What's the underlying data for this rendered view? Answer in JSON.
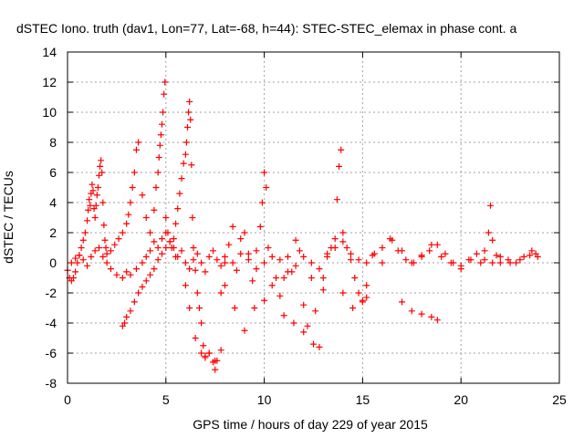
{
  "chart_data": {
    "type": "scatter",
    "title": "dSTEC Iono. truth (dav1, Lon=77, Lat=-68, h=44): STEC-STEC_elemax in phase cont. a",
    "xlabel": "GPS time / hours of day 229 of year 2015",
    "ylabel": "dSTEC  / TECUs",
    "xlim": [
      0,
      25
    ],
    "ylim": [
      -8,
      14
    ],
    "xticks": [
      0,
      5,
      10,
      15,
      20,
      25
    ],
    "yticks": [
      -8,
      -6,
      -4,
      -2,
      0,
      2,
      4,
      6,
      8,
      10,
      12,
      14
    ],
    "xtick_labels": [
      "0",
      "5",
      "10",
      "15",
      "20",
      "25"
    ],
    "ytick_labels": [
      "-8",
      "-6",
      "-4",
      "-2",
      "0",
      "2",
      "4",
      "6",
      "8",
      "10",
      "12",
      "14"
    ],
    "grid": true,
    "marker": "+",
    "color": "#ff0000",
    "series": [
      {
        "name": "",
        "x": [
          0.0,
          0.1,
          0.2,
          0.3,
          0.4,
          0.5,
          0.6,
          0.7,
          0.8,
          0.9,
          1.0,
          1.05,
          1.1,
          1.15,
          1.2,
          1.25,
          1.3,
          1.35,
          1.4,
          1.45,
          1.5,
          1.55,
          1.6,
          1.65,
          1.7,
          1.75,
          1.8,
          1.85,
          1.9,
          1.95,
          2.0,
          2.2,
          2.4,
          2.6,
          2.8,
          3.0,
          3.1,
          3.2,
          3.3,
          3.4,
          3.5,
          3.6,
          3.8,
          4.0,
          4.2,
          4.4,
          4.5,
          4.6,
          4.65,
          4.7,
          4.75,
          4.8,
          4.85,
          4.9,
          4.95,
          5.0,
          5.1,
          5.2,
          5.3,
          5.4,
          5.5,
          5.6,
          5.7,
          5.8,
          5.9,
          6.0,
          6.05,
          6.1,
          6.15,
          6.2,
          6.25,
          6.3,
          6.35,
          6.4,
          6.5,
          6.6,
          6.7,
          6.8,
          6.9,
          7.0,
          7.2,
          7.4,
          7.5,
          7.6,
          7.8,
          8.0,
          8.2,
          8.4,
          8.6,
          8.8,
          9.0,
          9.2,
          9.4,
          9.6,
          9.8,
          9.9,
          10.0,
          10.1,
          10.2,
          10.4,
          10.6,
          10.8,
          11.0,
          11.2,
          11.4,
          11.6,
          11.8,
          12.0,
          12.2,
          12.4,
          12.6,
          12.8,
          13.0,
          13.2,
          13.4,
          13.6,
          13.7,
          13.8,
          13.9,
          14.0,
          14.2,
          14.4,
          14.6,
          14.8,
          15.0,
          15.2,
          15.5,
          16.0,
          16.5,
          17.0,
          17.5,
          18.0,
          18.5,
          19.0,
          19.5,
          20.0,
          20.5,
          21.0,
          21.2,
          21.4,
          21.5,
          21.6,
          21.8,
          22.0,
          22.5,
          23.0,
          23.5,
          23.8
        ],
        "y": [
          -0.5,
          -1.0,
          -1.2,
          -1.0,
          -0.6,
          0.0,
          0.5,
          1.0,
          1.5,
          2.0,
          2.8,
          3.5,
          4.2,
          3.8,
          4.6,
          5.2,
          4.8,
          3.6,
          3.0,
          3.8,
          4.5,
          5.0,
          5.8,
          6.4,
          6.8,
          6.0,
          4.0,
          2.5,
          1.5,
          1.0,
          0.6,
          0.8,
          1.2,
          1.6,
          2.0,
          2.6,
          3.2,
          4.0,
          5.0,
          6.0,
          7.5,
          8.0,
          4.5,
          3.0,
          2.0,
          3.5,
          5.0,
          6.0,
          7.0,
          7.8,
          8.5,
          9.2,
          10.0,
          11.2,
          12.0,
          3.0,
          2.0,
          1.4,
          1.0,
          1.6,
          2.6,
          3.6,
          4.6,
          5.6,
          6.6,
          7.2,
          8.0,
          9.0,
          10.0,
          10.7,
          9.5,
          6.5,
          3.0,
          1.0,
          -0.5,
          -2.0,
          -3.0,
          -4.0,
          -5.5,
          -6.2,
          -6.0,
          -6.6,
          -7.1,
          -6.5,
          -2.0,
          0.0,
          1.2,
          2.4,
          -0.5,
          1.6,
          2.0,
          0.6,
          -1.2,
          0.8,
          2.4,
          4.0,
          6.0,
          5.0,
          1.0,
          -1.5,
          -1.0,
          -2.2,
          -1.0,
          0.4,
          -0.6,
          1.5,
          0.8,
          -2.8,
          -4.2,
          -1.0,
          -3.2,
          -5.6,
          -1.8,
          0.4,
          1.0,
          1.6,
          4.2,
          6.4,
          7.5,
          2.0,
          1.0,
          0.2,
          -1.0,
          -2.0,
          -2.5,
          -1.5,
          0.5,
          0.0,
          1.5,
          0.8,
          0.0,
          0.5,
          1.2,
          0.4,
          0.0,
          -0.2,
          0.2,
          0.0,
          0.8,
          2.0,
          3.8,
          1.5,
          0.5,
          0.0,
          0.0,
          0.2,
          0.5,
          0.6
        ]
      },
      {
        "name": "",
        "x": [
          0.2,
          0.4,
          0.6,
          0.8,
          1.0,
          1.2,
          1.4,
          1.6,
          1.8,
          2.0,
          2.2,
          2.5,
          2.8,
          3.0,
          3.2,
          3.5,
          3.8,
          4.0,
          4.2,
          4.4,
          4.6,
          4.8,
          5.0,
          5.2,
          5.4,
          5.6,
          5.8,
          6.0,
          6.2,
          6.4,
          6.6,
          6.8,
          7.0,
          7.2,
          7.4,
          7.6,
          7.8,
          8.0,
          8.4,
          8.8,
          9.2,
          9.6,
          10.0,
          10.4,
          10.8,
          11.2,
          11.6,
          12.0,
          12.4,
          12.8,
          13.2,
          13.6,
          14.0,
          14.4,
          14.8,
          15.2,
          15.6,
          16.0,
          16.4,
          16.8,
          17.2,
          17.6,
          18.0,
          18.4,
          18.8,
          19.2,
          19.6,
          20.0,
          20.4,
          20.8,
          21.2,
          21.6,
          22.0,
          22.4,
          22.8,
          23.2,
          23.6,
          23.9
        ],
        "y": [
          0.0,
          0.3,
          0.5,
          0.2,
          -0.2,
          0.4,
          0.8,
          1.0,
          0.4,
          0.0,
          -0.4,
          -0.8,
          -1.0,
          -0.6,
          -0.8,
          -0.4,
          0.0,
          0.4,
          0.8,
          1.4,
          1.0,
          1.6,
          2.0,
          1.4,
          1.0,
          0.4,
          0.8,
          0.0,
          -0.4,
          0.2,
          0.6,
          0.0,
          -0.6,
          0.4,
          0.8,
          0.2,
          -0.2,
          0.4,
          0.0,
          0.6,
          0.2,
          -0.4,
          0.0,
          0.4,
          0.2,
          -0.6,
          -0.2,
          0.4,
          0.0,
          -0.4,
          0.6,
          1.0,
          1.4,
          0.6,
          0.2,
          0.0,
          0.6,
          1.0,
          1.6,
          0.8,
          0.2,
          0.0,
          0.4,
          0.8,
          1.2,
          0.6,
          0.0,
          -0.4,
          0.2,
          0.6,
          0.2,
          0.0,
          0.4,
          0.2,
          0.0,
          0.4,
          0.8,
          0.4
        ]
      },
      {
        "name": "",
        "x": [
          2.8,
          2.9,
          3.0,
          3.2,
          3.4,
          3.6,
          3.8,
          4.0,
          4.2,
          4.4,
          4.6,
          4.8,
          5.0,
          5.5,
          6.0,
          6.2,
          6.5,
          6.8,
          7.0,
          7.2,
          7.5,
          7.8,
          8.0,
          8.5,
          9.0,
          9.5,
          10.0,
          11.0,
          11.5,
          12.0,
          12.5,
          13.0,
          14.0,
          14.5,
          15.0,
          15.2,
          17.0,
          17.5,
          18.0,
          18.5,
          18.8
        ],
        "y": [
          -4.2,
          -4.0,
          -3.6,
          -3.2,
          -2.6,
          -2.0,
          -1.6,
          -1.2,
          -0.8,
          -0.4,
          0.2,
          0.6,
          1.0,
          0.4,
          -1.5,
          -3.0,
          -5.0,
          -6.0,
          -6.3,
          -6.0,
          -6.5,
          -5.8,
          -1.5,
          -3.0,
          -4.5,
          -3.0,
          -2.5,
          -3.5,
          -4.0,
          -4.6,
          -5.4,
          -1.0,
          -2.0,
          -3.0,
          -2.6,
          -2.3,
          -2.6,
          -3.2,
          -3.4,
          -3.6,
          -3.8
        ]
      }
    ]
  }
}
